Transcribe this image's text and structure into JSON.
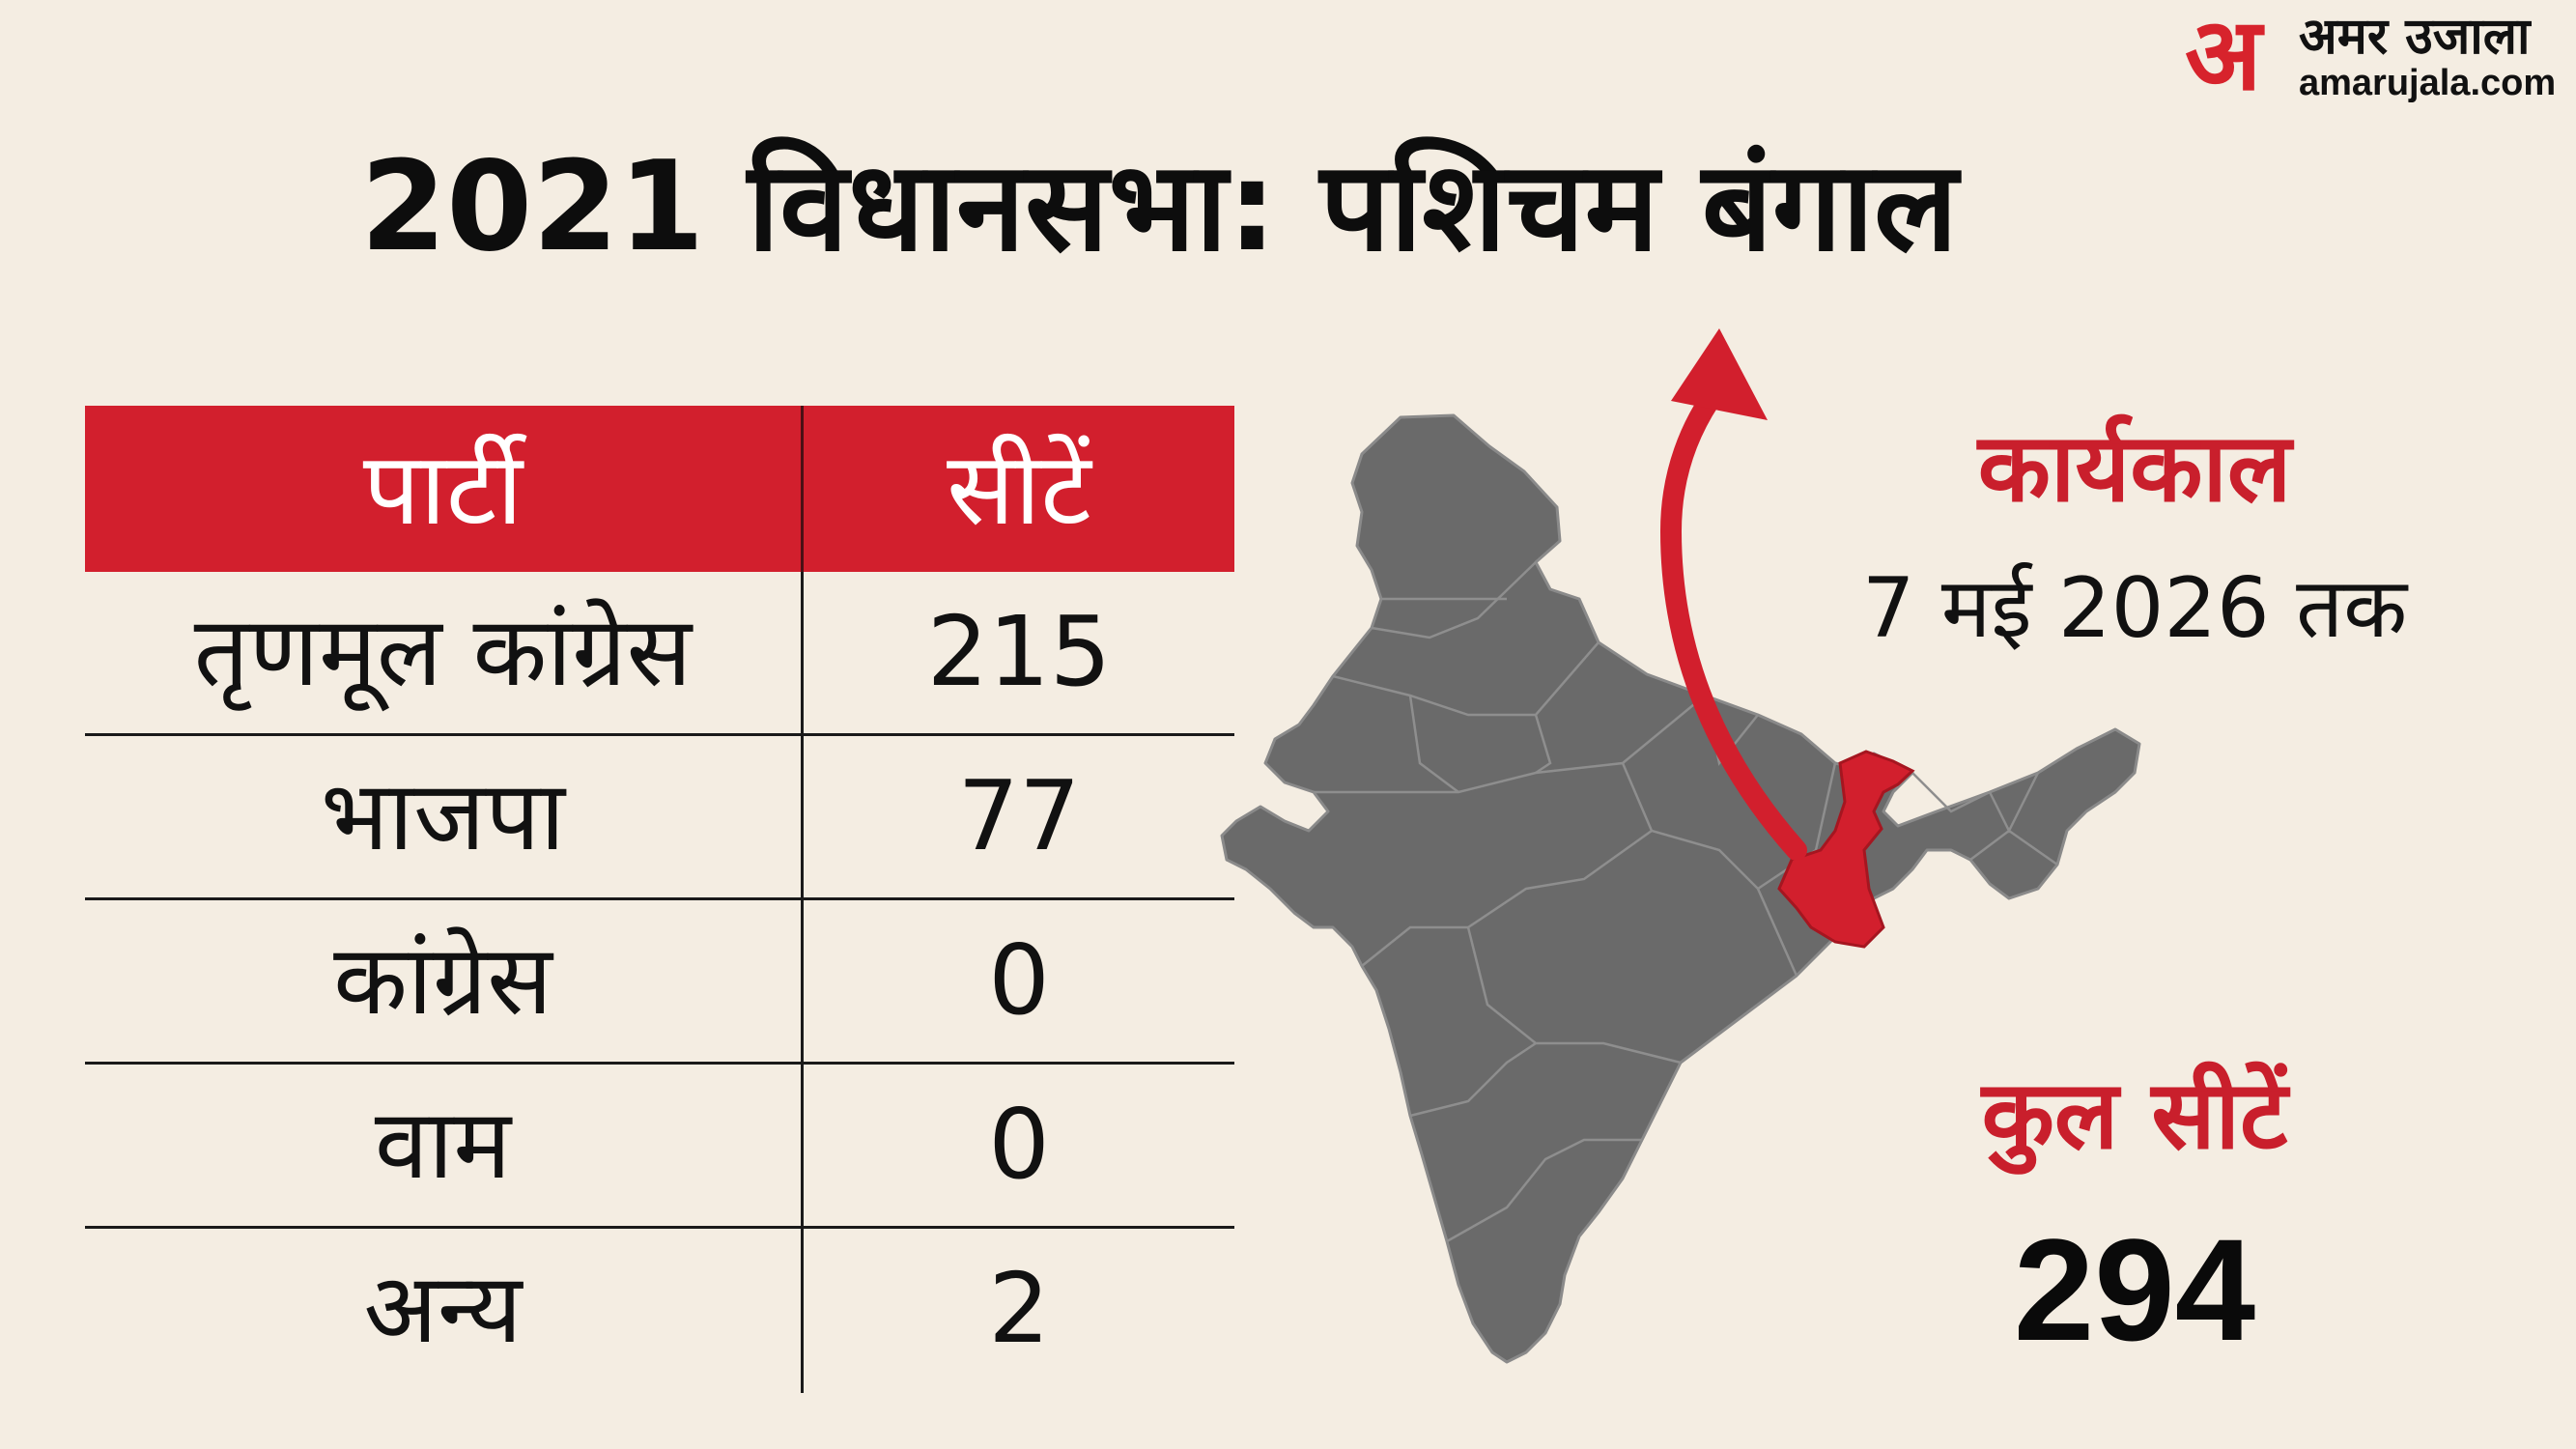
{
  "brand": {
    "mark": "अ",
    "name": "अमर उजाला",
    "url": "amarujala.com",
    "accent_color": "#d7232c"
  },
  "title": "2021 विधानसभा: पशिचम बंगाल",
  "table": {
    "header_color": "#d21f2d",
    "headers": {
      "party": "पार्टी",
      "seats": "सीटें"
    },
    "rows": [
      {
        "party": "तृणमूल कांग्रेस",
        "seats": "215"
      },
      {
        "party": "भाजपा",
        "seats": "77"
      },
      {
        "party": "कांग्रेस",
        "seats": "0"
      },
      {
        "party": "वाम",
        "seats": "0"
      },
      {
        "party": "अन्य",
        "seats": "2"
      }
    ]
  },
  "map": {
    "country_color": "#6a6a6a",
    "highlight_color": "#d21f2d",
    "highlight_icon": "arrow-up-icon"
  },
  "tenure": {
    "label": "कार्यकाल",
    "value": "7 मई 2026 तक"
  },
  "total": {
    "label": "कुल सीटें",
    "value": "294"
  }
}
